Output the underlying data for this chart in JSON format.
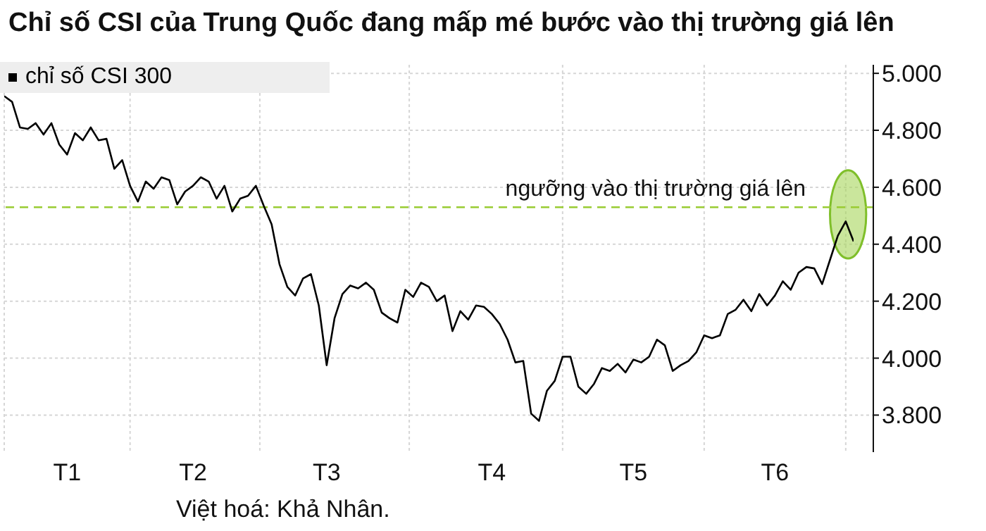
{
  "chart_data": {
    "type": "line",
    "title": "Chỉ số CSI của Trung Quốc đang mấp mé bước vào thị trường giá lên",
    "categories": [
      null,
      null,
      null,
      null,
      null,
      null,
      null,
      null,
      "T1",
      null,
      null,
      null,
      null,
      null,
      null,
      null,
      null,
      null,
      null,
      null,
      null,
      null,
      null,
      null,
      "T2",
      null,
      null,
      null,
      null,
      null,
      null,
      null,
      null,
      null,
      null,
      null,
      null,
      null,
      null,
      null,
      null,
      "T3",
      null,
      null,
      null,
      null,
      null,
      null,
      null,
      null,
      null,
      null,
      null,
      null,
      null,
      null,
      null,
      null,
      null,
      null,
      null,
      null,
      "T4",
      null,
      null,
      null,
      null,
      null,
      null,
      null,
      null,
      null,
      null,
      null,
      null,
      null,
      null,
      null,
      null,
      null,
      "T5",
      null,
      null,
      null,
      null,
      null,
      null,
      null,
      null,
      null,
      null,
      null,
      null,
      null,
      null,
      null,
      null,
      null,
      "T6",
      null,
      null,
      null,
      null,
      null,
      null,
      null,
      null,
      null,
      null
    ],
    "series": [
      {
        "name": "chỉ số CSI 300",
        "color": "#000000",
        "values": [
          4920,
          4900,
          4810,
          4805,
          4825,
          4785,
          4825,
          4750,
          4715,
          4790,
          4765,
          4810,
          4765,
          4770,
          4665,
          4695,
          4605,
          4550,
          4620,
          4595,
          4635,
          4625,
          4540,
          4585,
          4605,
          4635,
          4620,
          4560,
          4605,
          4515,
          4560,
          4570,
          4605,
          4535,
          4470,
          4330,
          4250,
          4220,
          4280,
          4295,
          4185,
          3975,
          4140,
          4225,
          4255,
          4245,
          4265,
          4240,
          4160,
          4140,
          4125,
          4240,
          4215,
          4265,
          4250,
          4200,
          4220,
          4095,
          4165,
          4135,
          4185,
          4180,
          4155,
          4120,
          4065,
          3985,
          3990,
          3805,
          3780,
          3885,
          3920,
          4005,
          4005,
          3900,
          3875,
          3910,
          3965,
          3955,
          3980,
          3950,
          3995,
          3985,
          4005,
          4065,
          4045,
          3955,
          3975,
          3990,
          4020,
          4080,
          4070,
          4080,
          4155,
          4170,
          4205,
          4165,
          4225,
          4185,
          4220,
          4270,
          4240,
          4300,
          4320,
          4315,
          4260,
          4345,
          4430,
          4480,
          4410
        ]
      }
    ],
    "ylim": [
      3670,
      5030
    ],
    "yticks": [
      {
        "value": 3800,
        "label": "3.800"
      },
      {
        "value": 4000,
        "label": "4.000"
      },
      {
        "value": 4200,
        "label": "4.200"
      },
      {
        "value": 4400,
        "label": "4.400"
      },
      {
        "value": 4600,
        "label": "4.600"
      },
      {
        "value": 4800,
        "label": "4.800"
      },
      {
        "value": 5000,
        "label": "5.000"
      }
    ],
    "ref_lines": [
      {
        "axis": "y",
        "value": 4530,
        "label": "ngưỡng vào thị trường giá lên",
        "color": "#99cc33",
        "line_style": "dashed"
      }
    ],
    "annotations": [
      "Việt hoá: Khả Nhân."
    ],
    "grid": true,
    "legend": "top left",
    "marker": "none",
    "line_style": "solid"
  }
}
